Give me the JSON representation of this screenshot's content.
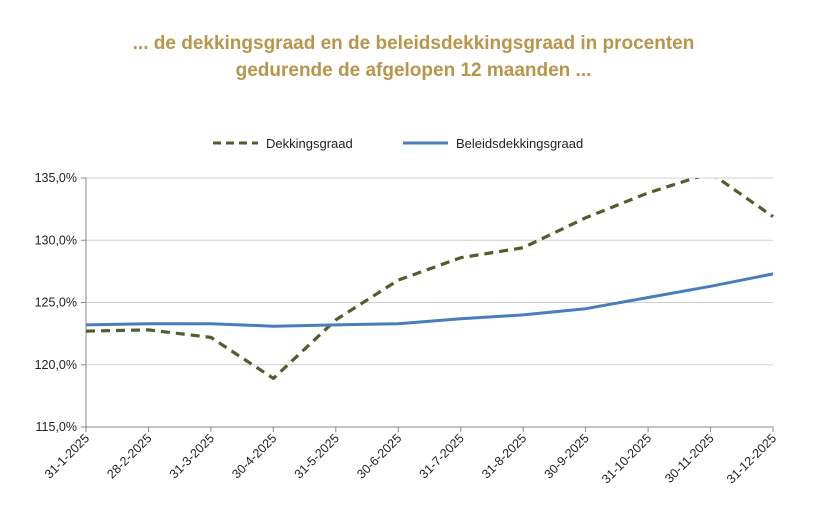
{
  "title_lines": [
    "... de dekkingsgraad en de beleidsdekkingsgraad in procenten",
    "gedurende de afgelopen 12 maanden ..."
  ],
  "chart_data": {
    "type": "line",
    "title": "... de dekkingsgraad en de beleidsdekkingsgraad in procenten gedurende de afgelopen 12 maanden ...",
    "xlabel": "",
    "ylabel": "",
    "ylim": [
      115,
      135
    ],
    "y_ticks": [
      135,
      130,
      125,
      120,
      115
    ],
    "y_tick_labels": [
      "135,0%",
      "130,0%",
      "125,0%",
      "120,0%",
      "115,0%"
    ],
    "categories": [
      "31-1-2025",
      "28-2-2025",
      "31-3-2025",
      "30-4-2025",
      "31-5-2025",
      "30-6-2025",
      "31-7-2025",
      "31-8-2025",
      "30-9-2025",
      "31-10-2025",
      "30-11-2025",
      "31-12-2025"
    ],
    "legend_position": "top-center",
    "series": [
      {
        "name": "Dekkingsgraad",
        "style": "dashed",
        "color": "#4f5f2a",
        "values": [
          122.7,
          122.8,
          122.2,
          118.9,
          123.6,
          126.8,
          128.6,
          129.4,
          131.8,
          133.8,
          135.4,
          131.9
        ]
      },
      {
        "name": "Beleidsdekkingsgraad",
        "style": "solid",
        "color": "#4a7ebb",
        "values": [
          123.2,
          123.3,
          123.3,
          123.1,
          123.2,
          123.3,
          123.7,
          124.0,
          124.5,
          125.4,
          126.3,
          127.3
        ]
      }
    ]
  }
}
